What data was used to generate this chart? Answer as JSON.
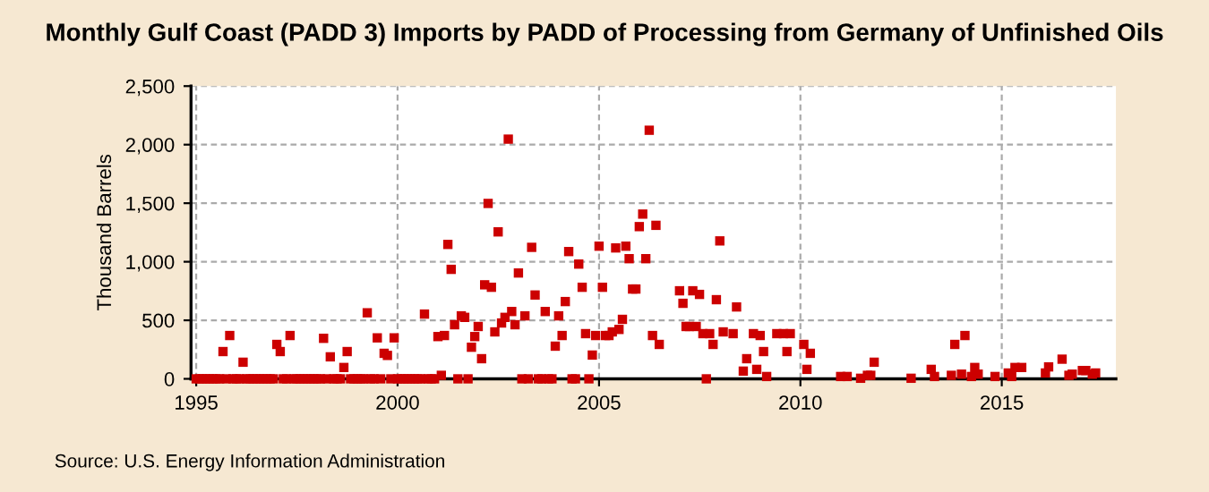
{
  "chart_data": {
    "type": "scatter",
    "title": "Monthly Gulf Coast (PADD 3) Imports by PADD of Processing from Germany of Unfinished Oils",
    "ylabel": "Thousand Barrels",
    "annotations": [
      "Source: U.S. Energy Information Administration"
    ],
    "xlim": [
      "1994-11-15",
      "2017-11-01"
    ],
    "xticks": [
      "1995",
      "2000",
      "2005",
      "2010",
      "2015"
    ],
    "ylim": [
      0,
      2500
    ],
    "yticks": [
      0,
      {
        "value": 500,
        "label": "500"
      },
      {
        "value": 1000,
        "label": "1,000"
      },
      {
        "value": 1500,
        "label": "1,500"
      },
      {
        "value": 2000,
        "label": "2,000"
      },
      {
        "value": 2500,
        "label": "2,500"
      }
    ],
    "grid": true,
    "marker": "square",
    "series": [
      {
        "color": "#cc0000",
        "x": [
          "1995-01",
          "1995-02",
          "1995-03",
          "1995-04",
          "1995-05",
          "1995-06",
          "1995-07",
          "1995-08",
          "1995-09",
          "1995-10",
          "1995-11",
          "1995-12",
          "1996-01",
          "1996-02",
          "1996-03",
          "1996-04",
          "1996-05",
          "1996-06",
          "1996-07",
          "1996-08",
          "1996-09",
          "1996-10",
          "1996-11",
          "1996-12",
          "1997-01",
          "1997-02",
          "1997-03",
          "1997-04",
          "1997-05",
          "1997-06",
          "1997-07",
          "1997-08",
          "1997-09",
          "1997-10",
          "1997-11",
          "1997-12",
          "1998-01",
          "1998-02",
          "1998-03",
          "1998-04",
          "1998-05",
          "1998-06",
          "1998-07",
          "1998-08",
          "1998-09",
          "1998-10",
          "1998-11",
          "1998-12",
          "1999-01",
          "1999-02",
          "1999-03",
          "1999-04",
          "1999-05",
          "1999-06",
          "1999-07",
          "1999-08",
          "1999-09",
          "1999-10",
          "1999-11",
          "1999-12",
          "2000-01",
          "2000-02",
          "2000-03",
          "2000-04",
          "2000-05",
          "2000-06",
          "2000-07",
          "2000-08",
          "2000-09",
          "2000-10",
          "2000-11",
          "2000-12",
          "2001-01",
          "2001-02",
          "2001-03",
          "2001-04",
          "2001-05",
          "2001-06",
          "2001-07",
          "2001-08",
          "2001-09",
          "2001-10",
          "2001-11",
          "2001-12",
          "2002-01",
          "2002-02",
          "2002-03",
          "2002-04",
          "2002-05",
          "2002-06",
          "2002-07",
          "2002-08",
          "2002-09",
          "2002-10",
          "2002-11",
          "2002-12",
          "2003-01",
          "2003-02",
          "2003-03",
          "2003-04",
          "2003-05",
          "2003-06",
          "2003-07",
          "2003-08",
          "2003-09",
          "2003-10",
          "2003-11",
          "2003-12",
          "2004-01",
          "2004-02",
          "2004-03",
          "2004-04",
          "2004-05",
          "2004-06",
          "2004-07",
          "2004-08",
          "2004-09",
          "2004-10",
          "2004-11",
          "2004-12",
          "2005-01",
          "2005-02",
          "2005-03",
          "2005-04",
          "2005-05",
          "2005-06",
          "2005-07",
          "2005-08",
          "2005-09",
          "2005-10",
          "2005-11",
          "2005-12",
          "2006-01",
          "2006-02",
          "2006-03",
          "2006-04",
          "2006-05",
          "2006-06",
          "2006-07",
          "2007-01",
          "2007-02",
          "2007-03",
          "2007-04",
          "2007-05",
          "2007-06",
          "2007-07",
          "2007-08",
          "2007-09",
          "2007-10",
          "2007-11",
          "2007-12",
          "2008-01",
          "2008-02",
          "2008-05",
          "2008-06",
          "2008-08",
          "2008-09",
          "2008-11",
          "2008-12",
          "2009-01",
          "2009-02",
          "2009-03",
          "2009-06",
          "2009-08",
          "2009-09",
          "2009-10",
          "2010-02",
          "2010-03",
          "2010-04",
          "2011-01",
          "2011-03",
          "2011-07",
          "2011-09",
          "2011-10",
          "2011-11",
          "2012-10",
          "2013-04",
          "2013-05",
          "2013-10",
          "2013-11",
          "2014-01",
          "2014-02",
          "2014-04",
          "2014-05",
          "2014-06",
          "2014-11",
          "2015-03",
          "2015-04",
          "2015-05",
          "2015-07",
          "2016-02",
          "2016-03",
          "2016-07",
          "2016-09",
          "2016-10",
          "2017-01",
          "2017-02",
          "2017-04",
          "2017-05"
        ],
        "values": [
          0,
          0,
          0,
          0,
          0,
          0,
          0,
          0,
          233,
          0,
          370,
          0,
          0,
          0,
          142,
          0,
          0,
          0,
          0,
          0,
          0,
          0,
          0,
          0,
          294,
          233,
          0,
          0,
          370,
          0,
          0,
          0,
          0,
          0,
          0,
          0,
          0,
          0,
          346,
          0,
          188,
          0,
          0,
          0,
          97,
          233,
          0,
          0,
          0,
          0,
          0,
          564,
          0,
          0,
          350,
          0,
          218,
          200,
          0,
          350,
          0,
          0,
          0,
          0,
          0,
          0,
          0,
          0,
          553,
          0,
          0,
          0,
          361,
          30,
          370,
          1148,
          935,
          462,
          0,
          538,
          525,
          0,
          270,
          361,
          447,
          172,
          803,
          1498,
          782,
          401,
          1255,
          477,
          525,
          2047,
          575,
          462,
          904,
          0,
          538,
          0,
          1123,
          716,
          0,
          0,
          575,
          0,
          0,
          279,
          538,
          370,
          660,
          1087,
          0,
          0,
          980,
          782,
          386,
          0,
          203,
          370,
          1133,
          782,
          370,
          370,
          401,
          1118,
          422,
          508,
          1133,
          1026,
          767,
          767,
          1300,
          1407,
          1026,
          2123,
          370,
          1311,
          294,
          752,
          645,
          447,
          447,
          752,
          447,
          721,
          386,
          0,
          386,
          294,
          676,
          1178,
          401,
          386,
          614,
          66,
          172,
          386,
          81,
          370,
          233,
          20,
          386,
          386,
          233,
          386,
          294,
          81,
          218,
          20,
          20,
          5,
          30,
          30,
          142,
          5,
          81,
          20,
          30,
          294,
          40,
          370,
          20,
          97,
          40,
          20,
          50,
          20,
          97,
          97,
          50,
          102,
          168,
          30,
          40,
          71,
          71,
          40,
          50
        ]
      }
    ]
  }
}
